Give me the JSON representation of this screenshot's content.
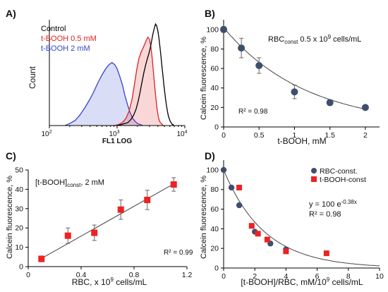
{
  "chart_data": [
    {
      "panel": "A)",
      "type": "histogram",
      "xlabel": "FL1 LOG",
      "ylabel": "Count",
      "xscale": "log",
      "xlim": [
        100,
        10000
      ],
      "ticks": [
        {
          "base": "10",
          "exp": "2"
        },
        {
          "base": "10",
          "exp": "3"
        },
        {
          "base": "10",
          "exp": "4"
        }
      ],
      "legend_position": "top-left",
      "series": [
        {
          "name": "Control",
          "color": "#000000",
          "fill": false,
          "x": [
            1000,
            1150,
            1300,
            1450,
            1600,
            1750,
            1900,
            2050,
            2200,
            2350,
            2500,
            2650,
            2800,
            2950,
            3100,
            3250,
            3400,
            3550,
            3700,
            3850,
            4000,
            4150,
            4300,
            4450,
            4600,
            4750,
            4900,
            5050,
            5200,
            5350,
            5500,
            5650,
            5800,
            5950,
            6100,
            6250,
            6400,
            6550,
            6700,
            6850,
            7000
          ],
          "values": [
            0.0,
            0.01,
            0.02,
            0.03,
            0.06,
            0.1,
            0.16,
            0.24,
            0.34,
            0.44,
            0.53,
            0.6,
            0.66,
            0.71,
            0.77,
            0.84,
            0.91,
            0.96,
            1.0,
            0.98,
            0.93,
            0.86,
            0.77,
            0.68,
            0.58,
            0.49,
            0.4,
            0.33,
            0.26,
            0.2,
            0.15,
            0.11,
            0.08,
            0.06,
            0.04,
            0.03,
            0.02,
            0.01,
            0.01,
            0.0,
            0.0
          ]
        },
        {
          "name": "t-BOOH 0.5 mM",
          "color": "#dd2222",
          "fill": true,
          "x": [
            900,
            1050,
            1200,
            1350,
            1500,
            1650,
            1800,
            1950,
            2100,
            2250,
            2400,
            2550,
            2700,
            2850,
            3000,
            3150,
            3300,
            3450,
            3600,
            3750,
            3900,
            4050,
            4200,
            4350,
            4500,
            4650,
            4800,
            4950
          ],
          "values": [
            0.0,
            0.01,
            0.03,
            0.07,
            0.14,
            0.25,
            0.4,
            0.55,
            0.66,
            0.72,
            0.76,
            0.8,
            0.84,
            0.87,
            0.85,
            0.78,
            0.66,
            0.52,
            0.38,
            0.26,
            0.16,
            0.09,
            0.05,
            0.03,
            0.02,
            0.01,
            0.0,
            0.0
          ]
        },
        {
          "name": "t-BOOH 2 mM",
          "color": "#3344cc",
          "fill": true,
          "x": [
            170,
            200,
            240,
            280,
            330,
            390,
            450,
            520,
            600,
            680,
            760,
            840,
            920,
            1000,
            1100,
            1200,
            1300,
            1420,
            1550,
            1700,
            1850,
            2000,
            2200,
            2400
          ],
          "values": [
            0.0,
            0.02,
            0.05,
            0.1,
            0.17,
            0.25,
            0.33,
            0.42,
            0.5,
            0.56,
            0.6,
            0.62,
            0.6,
            0.56,
            0.48,
            0.4,
            0.3,
            0.21,
            0.13,
            0.07,
            0.04,
            0.02,
            0.01,
            0.0
          ]
        }
      ]
    },
    {
      "panel": "B)",
      "type": "scatter",
      "xlabel": "t-BOOH, mM",
      "ylabel": "Calcein fluorescence, %",
      "xlim": [
        0,
        2.2
      ],
      "ylim": [
        0,
        110
      ],
      "xticks": [
        "0",
        "0.5",
        "1",
        "1.5",
        "2"
      ],
      "xtick_values": [
        0,
        0.5,
        1,
        1.5,
        2
      ],
      "yticks": [
        "0",
        "20",
        "40",
        "60",
        "80",
        "100"
      ],
      "ytick_values": [
        0,
        20,
        40,
        60,
        80,
        100
      ],
      "annotation": {
        "prefix": "RBC",
        "sub": "const",
        "mid": " 0.5 x 10",
        "sup": "9",
        "suffix": " cells/mL"
      },
      "r2": "R² = 0.98",
      "points": {
        "x": [
          0,
          0.25,
          0.5,
          1,
          1.5,
          2
        ],
        "y": [
          100,
          81,
          63,
          36,
          25,
          20
        ],
        "err": [
          3,
          10,
          8,
          7,
          3,
          2
        ],
        "color": "#3e4f6b"
      },
      "trend": {
        "type": "exponential",
        "a": 102,
        "b": -0.86
      }
    },
    {
      "panel": "C)",
      "type": "scatter",
      "xlabel": {
        "prefix": "RBC, x 10",
        "sup": "9",
        "suffix": " cells/mL"
      },
      "ylabel": "Calcein fluorescence, %",
      "xlim": [
        0,
        1.2
      ],
      "ylim": [
        0,
        50
      ],
      "xticks": [
        "0",
        "0.4",
        "0.8",
        "1.2"
      ],
      "xtick_values": [
        0,
        0.4,
        0.8,
        1.2
      ],
      "yticks": [
        "0",
        "10",
        "20",
        "30",
        "40",
        "50"
      ],
      "ytick_values": [
        0,
        10,
        20,
        30,
        40,
        50
      ],
      "annotation": {
        "prefix": "[t-BOOH]",
        "sub": "const",
        "suffix": ", 2 mM"
      },
      "r2": "R² = 0.99",
      "points": {
        "x": [
          0.1,
          0.3,
          0.5,
          0.7,
          0.9,
          1.1
        ],
        "y": [
          4,
          16,
          17.5,
          29.5,
          34.5,
          42.5
        ],
        "err": [
          1.5,
          4,
          4,
          5,
          5,
          3.5
        ],
        "color": "#ee2222"
      },
      "trend": {
        "type": "linear",
        "x": [
          0.1,
          1.1
        ],
        "y": [
          4.2,
          42.8
        ]
      }
    },
    {
      "panel": "D)",
      "type": "scatter",
      "xlabel": {
        "prefix": "[t-BOOH]/RBC, mM/10",
        "sup": "9",
        "suffix": " cells/mL"
      },
      "ylabel": "Calcein fluorescence, %",
      "xlim": [
        0,
        10
      ],
      "ylim": [
        0,
        110
      ],
      "xticks": [
        "0",
        "2",
        "4",
        "6",
        "8",
        "10"
      ],
      "xtick_values": [
        0,
        2,
        4,
        6,
        8,
        10
      ],
      "yticks": [
        "0",
        "20",
        "40",
        "60",
        "80",
        "100"
      ],
      "ytick_values": [
        0,
        20,
        40,
        60,
        80,
        100
      ],
      "legend_position": "top-right",
      "equation": {
        "prefix": "y = 100 e",
        "sup": "-0.38x"
      },
      "r2": "R² = 0.98",
      "series": [
        {
          "name": "RBC-const.",
          "marker": "circle",
          "color": "#3e4f6b",
          "x": [
            0,
            0.5,
            1,
            2,
            3,
            4
          ],
          "y": [
            100,
            82,
            64,
            37,
            25,
            19
          ]
        },
        {
          "name": "t-BOOH-const",
          "marker": "square",
          "color": "#ee2222",
          "x": [
            1,
            1.8,
            2.2,
            2.8,
            4,
            6.6
          ],
          "y": [
            82,
            43,
            35,
            29,
            17,
            15
          ]
        }
      ],
      "trend": {
        "type": "exponential",
        "a": 100,
        "b": -0.38
      }
    }
  ]
}
